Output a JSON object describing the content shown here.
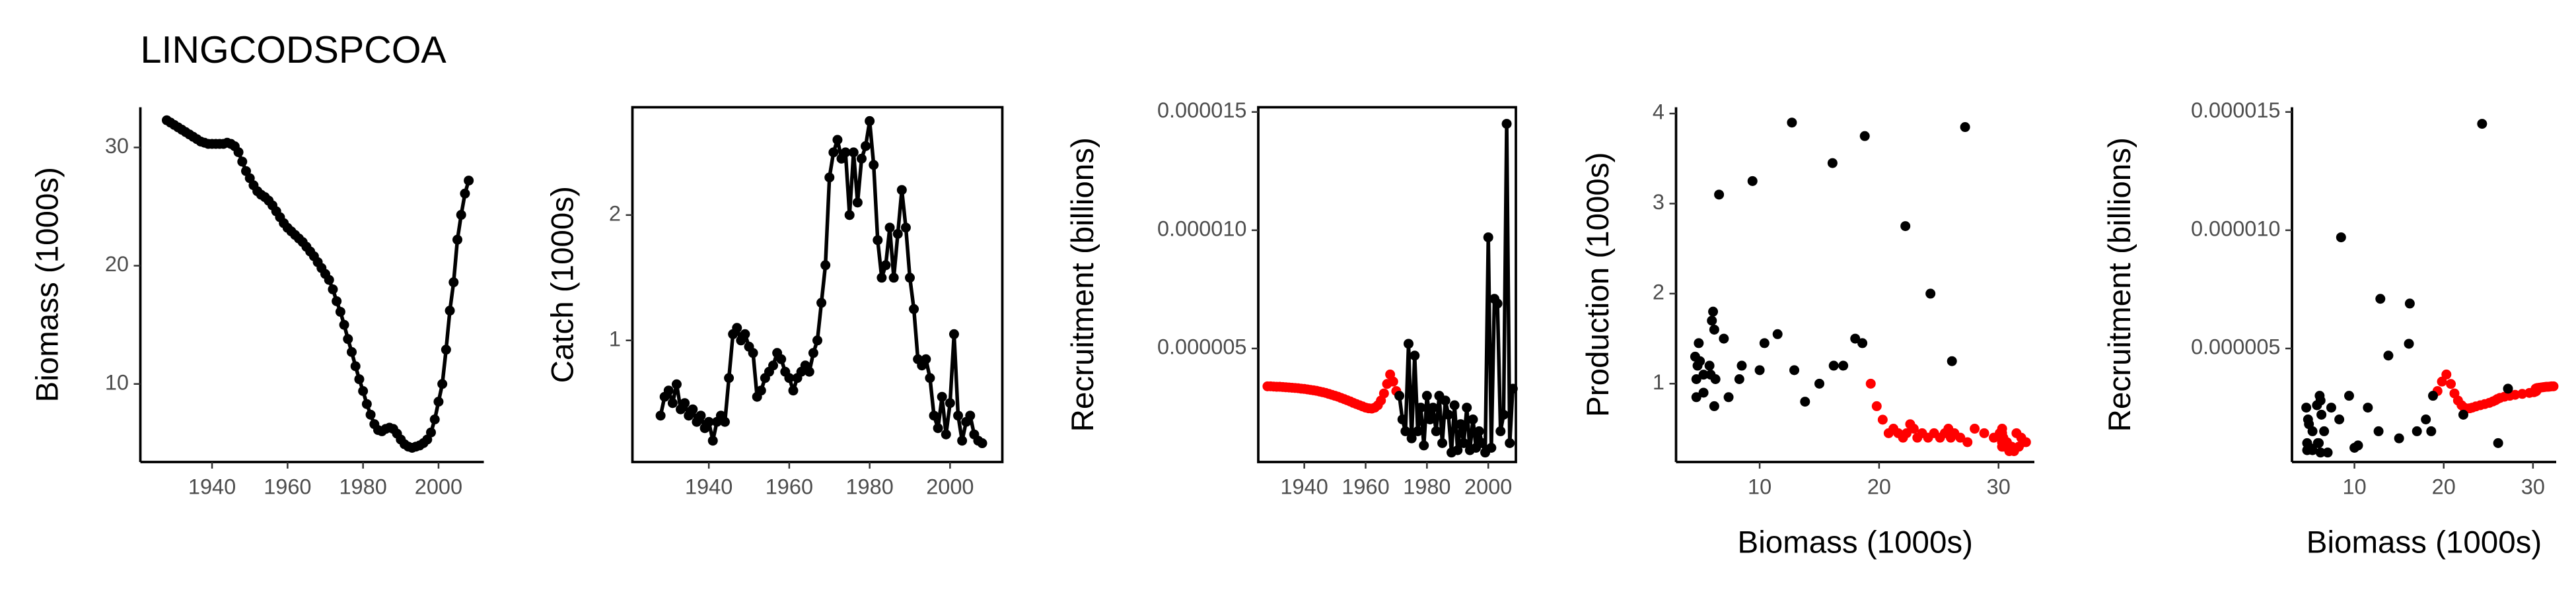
{
  "chart_data": [
    {
      "type": "line",
      "title": "LINGCODSPCOA",
      "ylabel": "Biomass (1000s)",
      "color": "#000000",
      "x": [
        1928,
        1929,
        1930,
        1931,
        1932,
        1933,
        1934,
        1935,
        1936,
        1937,
        1938,
        1939,
        1940,
        1941,
        1942,
        1943,
        1944,
        1945,
        1946,
        1947,
        1948,
        1949,
        1950,
        1951,
        1952,
        1953,
        1954,
        1955,
        1956,
        1957,
        1958,
        1959,
        1960,
        1961,
        1962,
        1963,
        1964,
        1965,
        1966,
        1967,
        1968,
        1969,
        1970,
        1971,
        1972,
        1973,
        1974,
        1975,
        1976,
        1977,
        1978,
        1979,
        1980,
        1981,
        1982,
        1983,
        1984,
        1985,
        1986,
        1987,
        1988,
        1989,
        1990,
        1991,
        1992,
        1993,
        1994,
        1995,
        1996,
        1997,
        1998,
        1999,
        2000,
        2001,
        2002,
        2003,
        2004,
        2005,
        2006,
        2007,
        2008
      ],
      "values": [
        32.3,
        32.1,
        31.9,
        31.7,
        31.5,
        31.3,
        31.1,
        30.9,
        30.7,
        30.5,
        30.4,
        30.3,
        30.3,
        30.3,
        30.3,
        30.3,
        30.4,
        30.3,
        30.1,
        29.6,
        28.8,
        28.0,
        27.4,
        26.8,
        26.3,
        26.0,
        25.8,
        25.5,
        25.1,
        24.6,
        24.1,
        23.6,
        23.2,
        22.9,
        22.6,
        22.3,
        22.0,
        21.6,
        21.2,
        20.8,
        20.3,
        19.8,
        19.3,
        18.8,
        18.0,
        17.0,
        16.1,
        15.0,
        13.8,
        12.7,
        11.5,
        10.4,
        9.4,
        8.3,
        7.4,
        6.6,
        6.1,
        6.0,
        6.2,
        6.3,
        6.2,
        5.8,
        5.3,
        4.9,
        4.7,
        4.6,
        4.7,
        4.8,
        5.0,
        5.3,
        5.9,
        7.0,
        8.5,
        10.0,
        12.9,
        16.2,
        18.6,
        22.2,
        24.3,
        26.1,
        27.2
      ],
      "xlim": [
        1921,
        2012
      ],
      "ylim": [
        3.4,
        33.4
      ],
      "xticks": [
        1940,
        1960,
        1980,
        2000
      ],
      "yticks": [
        10,
        20,
        30
      ]
    },
    {
      "type": "line",
      "ylabel": "Catch (1000s)",
      "color": "#000000",
      "x": [
        1928,
        1929,
        1930,
        1931,
        1932,
        1933,
        1934,
        1935,
        1936,
        1937,
        1938,
        1939,
        1940,
        1941,
        1942,
        1943,
        1944,
        1945,
        1946,
        1947,
        1948,
        1949,
        1950,
        1951,
        1952,
        1953,
        1954,
        1955,
        1956,
        1957,
        1958,
        1959,
        1960,
        1961,
        1962,
        1963,
        1964,
        1965,
        1966,
        1967,
        1968,
        1969,
        1970,
        1971,
        1972,
        1973,
        1974,
        1975,
        1976,
        1977,
        1978,
        1979,
        1980,
        1981,
        1982,
        1983,
        1984,
        1985,
        1986,
        1987,
        1988,
        1989,
        1990,
        1991,
        1992,
        1993,
        1994,
        1995,
        1996,
        1997,
        1998,
        1999,
        2000,
        2001,
        2002,
        2003,
        2004,
        2005,
        2006,
        2007,
        2008
      ],
      "values": [
        0.4,
        0.55,
        0.6,
        0.5,
        0.65,
        0.45,
        0.5,
        0.4,
        0.45,
        0.35,
        0.4,
        0.3,
        0.35,
        0.2,
        0.35,
        0.4,
        0.35,
        0.7,
        1.05,
        1.1,
        1.0,
        1.05,
        0.95,
        0.9,
        0.55,
        0.6,
        0.7,
        0.75,
        0.8,
        0.9,
        0.85,
        0.75,
        0.7,
        0.6,
        0.7,
        0.75,
        0.8,
        0.75,
        0.9,
        1.0,
        1.3,
        1.6,
        2.3,
        2.5,
        2.6,
        2.45,
        2.5,
        2.0,
        2.5,
        2.1,
        2.45,
        2.55,
        2.75,
        2.4,
        1.8,
        1.5,
        1.6,
        1.9,
        1.5,
        1.85,
        2.2,
        1.9,
        1.5,
        1.25,
        0.85,
        0.8,
        0.85,
        0.7,
        0.4,
        0.3,
        0.55,
        0.25,
        0.5,
        1.05,
        0.4,
        0.2,
        0.35,
        0.4,
        0.25,
        0.2,
        0.18
      ],
      "xlim": [
        1921,
        2013
      ],
      "ylim": [
        0.03,
        2.86
      ],
      "xticks": [
        1940,
        1960,
        1980,
        2000
      ],
      "yticks": [
        1,
        2
      ]
    },
    {
      "type": "line",
      "ylabel": "Recruitment (billions)",
      "series": [
        {
          "color": "#ff0000",
          "line": false,
          "x": [
            1928,
            1929,
            1930,
            1931,
            1932,
            1933,
            1934,
            1935,
            1936,
            1937,
            1938,
            1939,
            1940,
            1941,
            1942,
            1943,
            1944,
            1945,
            1946,
            1947,
            1948,
            1949,
            1950,
            1951,
            1952,
            1953,
            1954,
            1955,
            1956,
            1957,
            1958,
            1959,
            1960,
            1961,
            1962,
            1963,
            1964,
            1965,
            1966,
            1967,
            1968,
            1969,
            1970
          ],
          "values": [
            3.4e-06,
            3.4e-06,
            3.39e-06,
            3.38e-06,
            3.38e-06,
            3.37e-06,
            3.36e-06,
            3.35e-06,
            3.34e-06,
            3.33e-06,
            3.32e-06,
            3.3e-06,
            3.29e-06,
            3.27e-06,
            3.25e-06,
            3.23e-06,
            3.21e-06,
            3.18e-06,
            3.15e-06,
            3.12e-06,
            3.08e-06,
            3.04e-06,
            3e-06,
            2.96e-06,
            2.91e-06,
            2.86e-06,
            2.81e-06,
            2.76e-06,
            2.7e-06,
            2.65e-06,
            2.6e-06,
            2.55e-06,
            2.5e-06,
            2.47e-06,
            2.46e-06,
            2.5e-06,
            2.6e-06,
            2.8e-06,
            3.1e-06,
            3.5e-06,
            3.9e-06,
            3.6e-06,
            3.2e-06
          ]
        },
        {
          "color": "#000000",
          "line": true,
          "x": [
            1971,
            1972,
            1973,
            1974,
            1975,
            1976,
            1977,
            1978,
            1979,
            1980,
            1981,
            1982,
            1983,
            1984,
            1985,
            1986,
            1987,
            1988,
            1989,
            1990,
            1991,
            1992,
            1993,
            1994,
            1995,
            1996,
            1997,
            1998,
            1999,
            2000,
            2001,
            2002,
            2003,
            2004,
            2005,
            2006,
            2007,
            2008
          ],
          "values": [
            3e-06,
            2e-06,
            1.5e-06,
            5.2e-06,
            1.2e-06,
            4.7e-06,
            1.5e-06,
            2.5e-06,
            9e-07,
            3e-06,
            2e-06,
            2.5e-06,
            1.5e-06,
            3e-06,
            1e-06,
            2.8e-06,
            2.2e-06,
            6e-07,
            2.6e-06,
            7e-07,
            1.8e-06,
            1e-06,
            2.5e-06,
            7e-07,
            2e-06,
            8e-07,
            1.5e-06,
            1e-06,
            6e-07,
            9.7e-06,
            8e-07,
            7.1e-06,
            6.9e-06,
            1.5e-06,
            2.2e-06,
            1.45e-05,
            1e-06,
            3.3e-06
          ]
        }
      ],
      "xlim": [
        1925,
        2009
      ],
      "ylim": [
        2e-07,
        1.52e-05
      ],
      "xticks": [
        1940,
        1960,
        1980,
        2000
      ],
      "yticks": [
        5e-06,
        {
          "value": 1e-05,
          "label": "0.000010"
        },
        1.5e-05
      ]
    },
    {
      "type": "scatter",
      "ylabel": "Production (1000s)",
      "xlabel": "Biomass (1000s)",
      "series": [
        {
          "color": "#ff0000",
          "x": [
            32.3,
            32.1,
            31.9,
            31.7,
            31.5,
            31.3,
            31.1,
            30.9,
            30.7,
            30.5,
            30.4,
            30.3,
            30.3,
            30.3,
            30.3,
            30.3,
            30.4,
            30.3,
            30.1,
            29.6,
            28.8,
            28.0,
            27.4,
            26.8,
            26.3,
            26.0,
            25.8,
            25.5,
            25.1,
            24.6,
            24.1,
            23.6,
            23.2,
            22.9,
            22.6,
            22.3,
            22.0,
            21.6,
            21.2,
            20.8,
            20.3,
            19.8,
            19.3
          ],
          "values": [
            0.35,
            0.35,
            0.4,
            0.3,
            0.45,
            0.25,
            0.3,
            0.25,
            0.35,
            0.3,
            0.35,
            0.3,
            0.35,
            0.3,
            0.45,
            0.35,
            0.4,
            0.5,
            0.45,
            0.4,
            0.45,
            0.5,
            0.35,
            0.4,
            0.45,
            0.4,
            0.5,
            0.45,
            0.4,
            0.45,
            0.4,
            0.45,
            0.4,
            0.5,
            0.55,
            0.45,
            0.4,
            0.45,
            0.5,
            0.45,
            0.6,
            0.75,
            1.0
          ]
        },
        {
          "color": "#000000",
          "x": [
            18.8,
            18.0,
            17.0,
            16.1,
            15.0,
            13.8,
            12.7,
            11.5,
            10.4,
            9.4,
            8.3,
            7.4,
            6.6,
            6.1,
            6.0,
            6.2,
            6.3,
            6.2,
            5.8,
            5.3,
            4.9,
            4.7,
            4.6,
            4.7,
            4.8,
            5.0,
            5.3,
            5.9,
            7.0,
            8.5,
            10.0,
            12.9,
            16.2,
            18.6,
            22.2,
            24.3,
            26.1,
            27.2
          ],
          "values": [
            3.75,
            1.5,
            1.2,
            3.45,
            1.0,
            0.8,
            3.9,
            1.55,
            1.45,
            3.25,
            1.05,
            0.85,
            3.1,
            1.8,
            1.7,
            1.6,
            1.05,
            0.75,
            1.2,
            1.1,
            1.45,
            1.05,
            1.3,
            0.85,
            1.2,
            1.25,
            0.9,
            1.1,
            1.5,
            1.2,
            1.15,
            1.15,
            1.2,
            1.45,
            2.75,
            2.0,
            1.25,
            3.85
          ]
        }
      ],
      "xlim": [
        3,
        33
      ],
      "ylim": [
        0.13,
        4.07
      ],
      "xticks": [
        10,
        20,
        30
      ],
      "yticks": [
        1,
        2,
        3,
        4
      ]
    },
    {
      "type": "scatter",
      "ylabel": "Recruitment (billions)",
      "xlabel": "Biomass (1000s)",
      "series": [
        {
          "color": "#ff0000",
          "x": [
            32.3,
            32.1,
            31.9,
            31.7,
            31.5,
            31.3,
            31.1,
            30.9,
            30.7,
            30.5,
            30.4,
            30.3,
            30.3,
            30.3,
            30.3,
            30.3,
            30.4,
            30.3,
            30.1,
            29.6,
            28.8,
            28.0,
            27.4,
            26.8,
            26.3,
            26.0,
            25.8,
            25.5,
            25.1,
            24.6,
            24.1,
            23.6,
            23.2,
            22.9,
            22.6,
            22.3,
            22.0,
            21.6,
            21.2,
            20.8,
            20.3,
            19.8,
            19.3
          ],
          "values": [
            3.4e-06,
            3.4e-06,
            3.39e-06,
            3.38e-06,
            3.38e-06,
            3.37e-06,
            3.36e-06,
            3.35e-06,
            3.34e-06,
            3.33e-06,
            3.32e-06,
            3.3e-06,
            3.29e-06,
            3.27e-06,
            3.25e-06,
            3.23e-06,
            3.21e-06,
            3.18e-06,
            3.15e-06,
            3.12e-06,
            3.08e-06,
            3.04e-06,
            3e-06,
            2.96e-06,
            2.91e-06,
            2.86e-06,
            2.81e-06,
            2.76e-06,
            2.7e-06,
            2.65e-06,
            2.6e-06,
            2.55e-06,
            2.5e-06,
            2.47e-06,
            2.46e-06,
            2.5e-06,
            2.6e-06,
            2.8e-06,
            3.1e-06,
            3.5e-06,
            3.9e-06,
            3.6e-06,
            3.2e-06
          ]
        },
        {
          "color": "#000000",
          "x": [
            18.8,
            18.0,
            17.0,
            16.1,
            15.0,
            13.8,
            12.7,
            11.5,
            10.4,
            9.4,
            8.3,
            7.4,
            6.6,
            6.1,
            6.0,
            6.2,
            6.3,
            6.2,
            5.8,
            5.3,
            4.9,
            4.7,
            4.6,
            4.7,
            4.8,
            5.0,
            5.3,
            5.9,
            7.0,
            8.5,
            10.0,
            12.9,
            16.2,
            18.6,
            22.2,
            24.3,
            26.1,
            27.2
          ],
          "values": [
            3e-06,
            2e-06,
            1.5e-06,
            5.2e-06,
            1.2e-06,
            4.7e-06,
            1.5e-06,
            2.5e-06,
            9e-07,
            3e-06,
            2e-06,
            2.5e-06,
            1.5e-06,
            3e-06,
            1e-06,
            2.8e-06,
            2.2e-06,
            6e-07,
            2.6e-06,
            7e-07,
            1.8e-06,
            1e-06,
            2.5e-06,
            7e-07,
            2e-06,
            8e-07,
            1.5e-06,
            1e-06,
            6e-07,
            9.7e-06,
            8e-07,
            7.1e-06,
            6.9e-06,
            1.5e-06,
            2.2e-06,
            1.45e-05,
            1e-06,
            3.3e-06
          ]
        }
      ],
      "xlim": [
        3,
        32.6
      ],
      "ylim": [
        2e-07,
        1.52e-05
      ],
      "xticks": [
        10,
        20,
        30
      ],
      "yticks": [
        5e-06,
        {
          "value": 1e-05,
          "label": "0.000010"
        },
        1.5e-05
      ]
    }
  ]
}
